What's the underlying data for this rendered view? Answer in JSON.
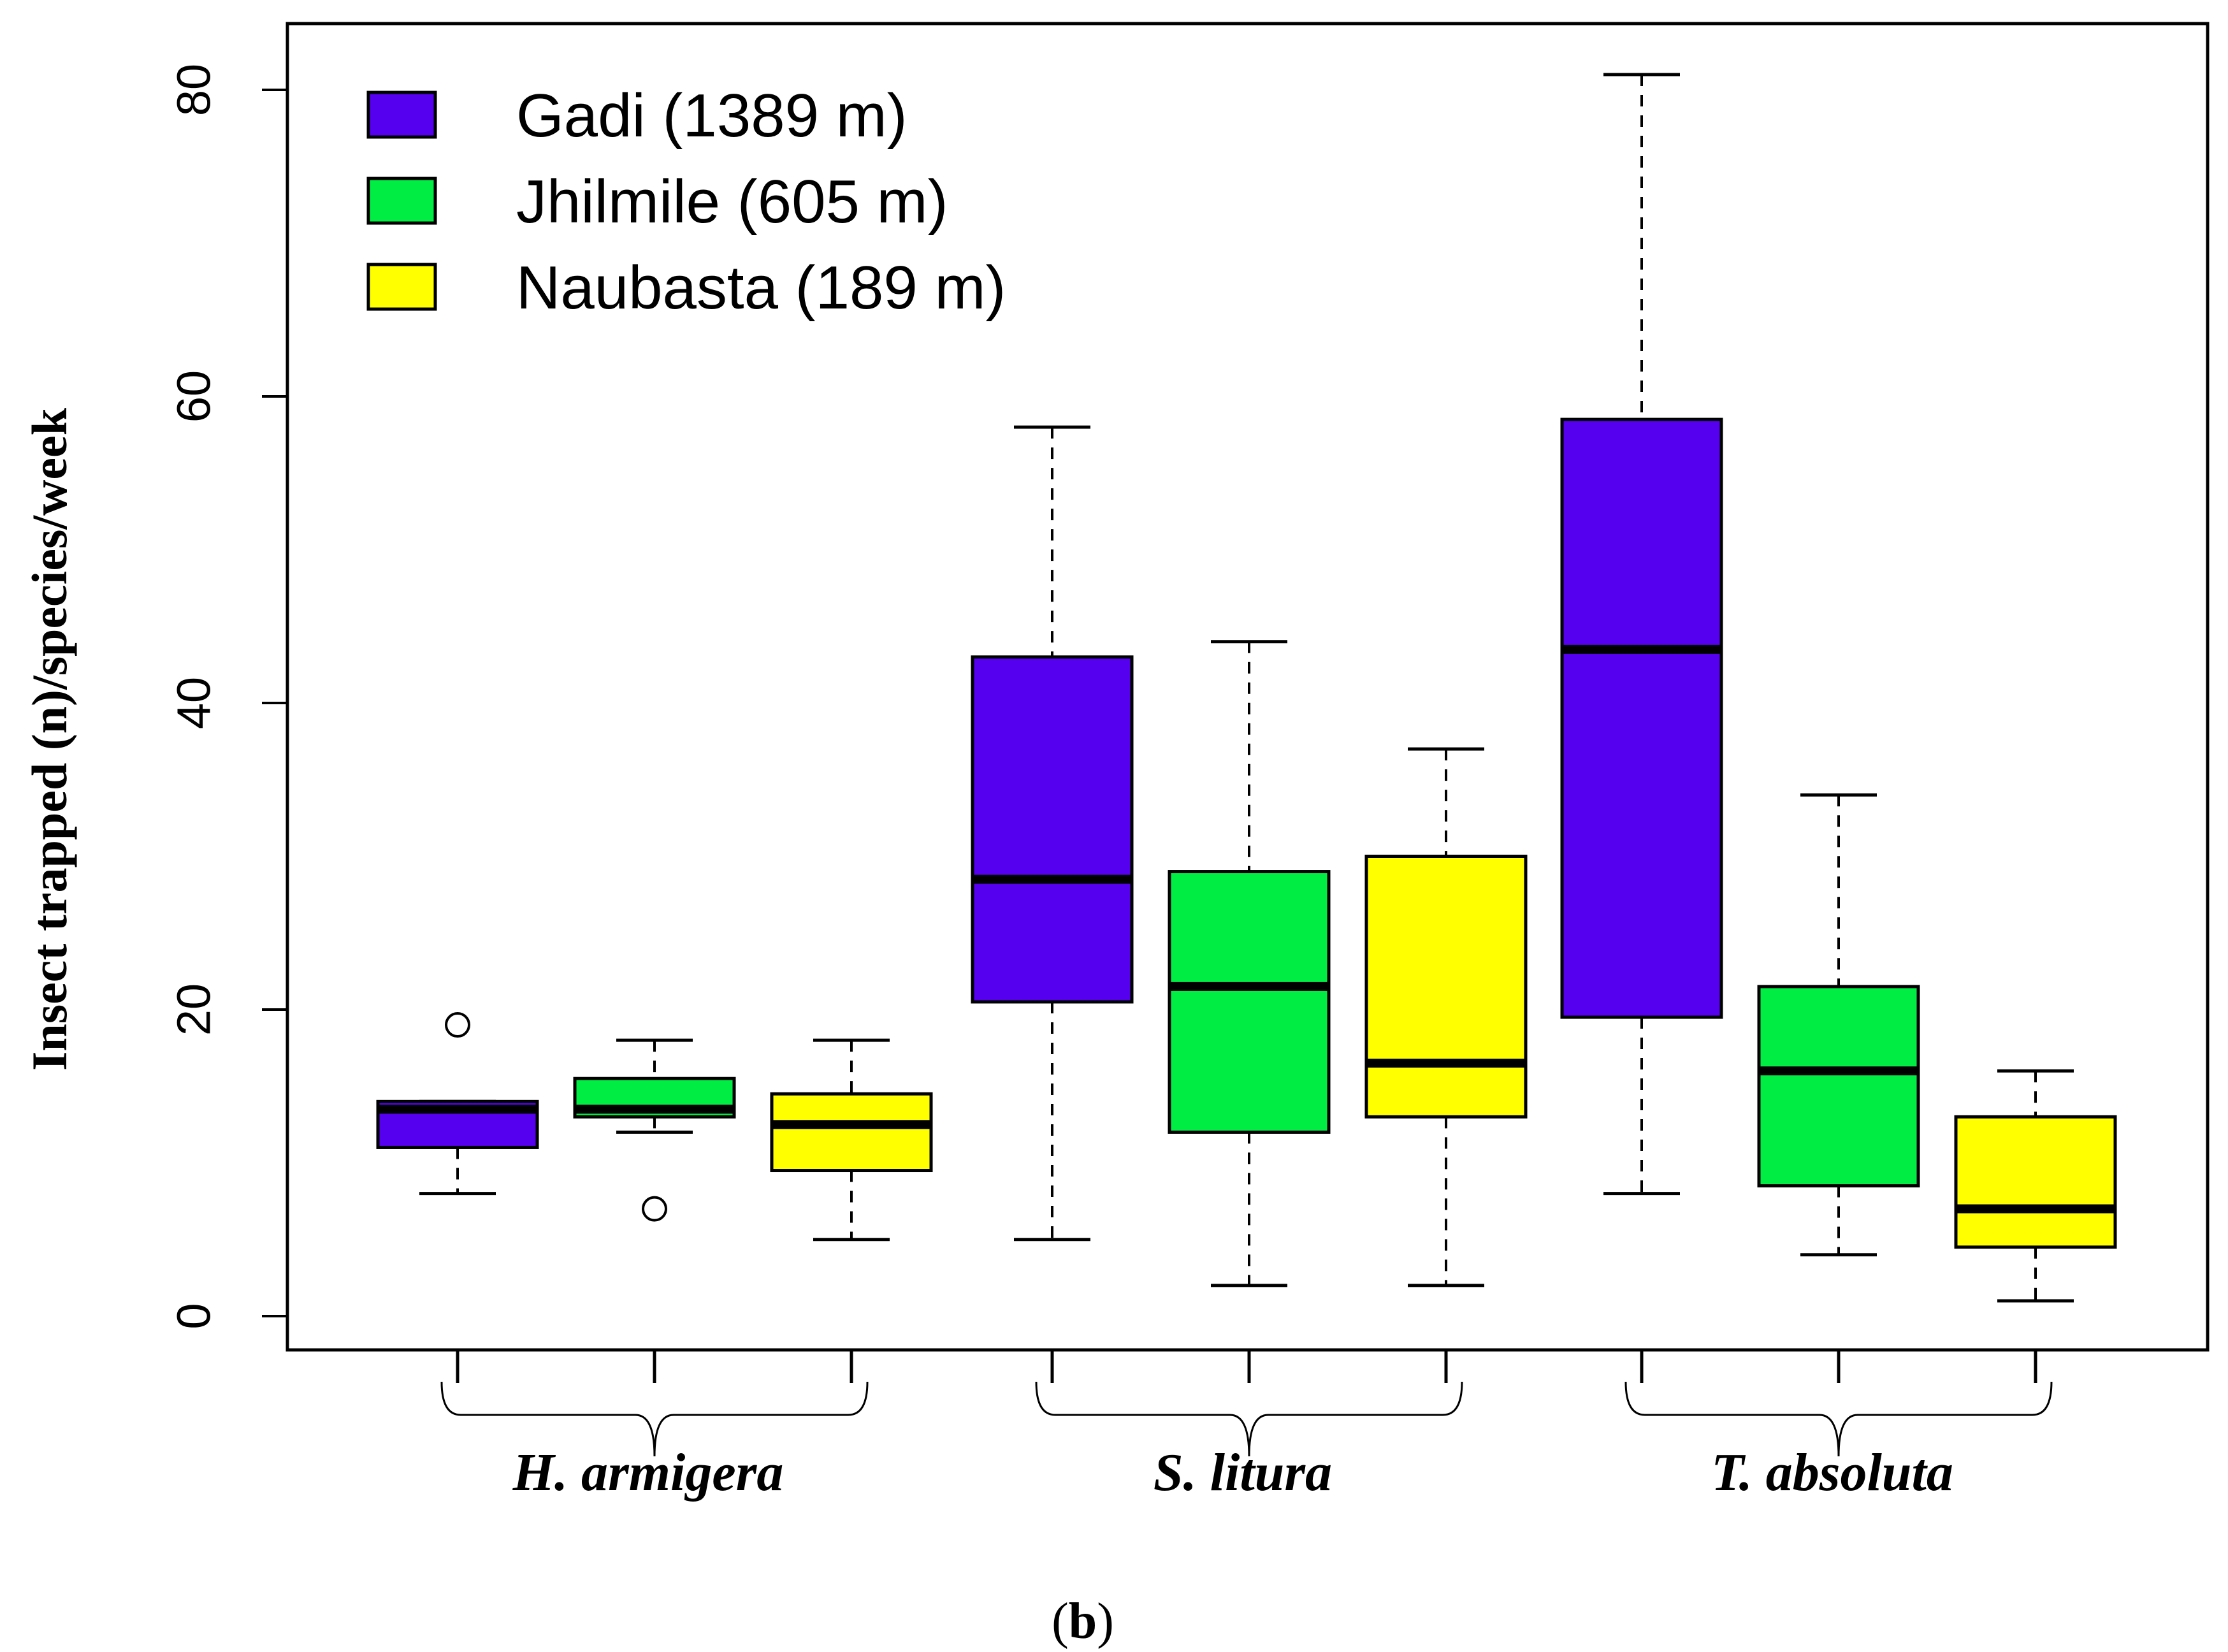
{
  "chart_data": {
    "type": "boxplot",
    "title": "",
    "ylabel": "Insect trapped (n)/species/week",
    "xlabel": "",
    "ylim": [
      0,
      82
    ],
    "yticks": [
      0,
      20,
      40,
      60,
      80
    ],
    "grid": false,
    "legend_position": "top-left",
    "groups": [
      "H. armigera",
      "S. litura",
      "T. absoluta"
    ],
    "series": [
      {
        "name": "Gadi (1389 m)",
        "color": "#5500ee",
        "boxes": [
          {
            "group": "H. armigera",
            "min": 8,
            "q1": 11,
            "median": 13.5,
            "q3": 14,
            "max": 14,
            "outliers": [
              19
            ]
          },
          {
            "group": "S. litura",
            "min": 5,
            "q1": 20.5,
            "median": 28.5,
            "q3": 43,
            "max": 58,
            "outliers": []
          },
          {
            "group": "T. absoluta",
            "min": 8,
            "q1": 19.5,
            "median": 43.5,
            "q3": 58.5,
            "max": 81,
            "outliers": []
          }
        ]
      },
      {
        "name": "Jhilmile (605 m)",
        "color": "#00ee44",
        "boxes": [
          {
            "group": "H. armigera",
            "min": 12,
            "q1": 13,
            "median": 13.5,
            "q3": 15.5,
            "max": 18,
            "outliers": [
              7
            ]
          },
          {
            "group": "S. litura",
            "min": 2,
            "q1": 12,
            "median": 21.5,
            "q3": 29,
            "max": 44,
            "outliers": []
          },
          {
            "group": "T. absoluta",
            "min": 4,
            "q1": 8.5,
            "median": 16,
            "q3": 21.5,
            "max": 34,
            "outliers": []
          }
        ]
      },
      {
        "name": "Naubasta (189 m)",
        "color": "#ffff00",
        "boxes": [
          {
            "group": "H. armigera",
            "min": 5,
            "q1": 9.5,
            "median": 12.5,
            "q3": 14.5,
            "max": 18,
            "outliers": []
          },
          {
            "group": "S. litura",
            "min": 2,
            "q1": 13,
            "median": 16.5,
            "q3": 30,
            "max": 37,
            "outliers": []
          },
          {
            "group": "T. absoluta",
            "min": 1,
            "q1": 4.5,
            "median": 7,
            "q3": 13,
            "max": 16,
            "outliers": []
          }
        ]
      }
    ]
  },
  "panel_label": {
    "open": "(",
    "letter": "b",
    "close": ")"
  }
}
